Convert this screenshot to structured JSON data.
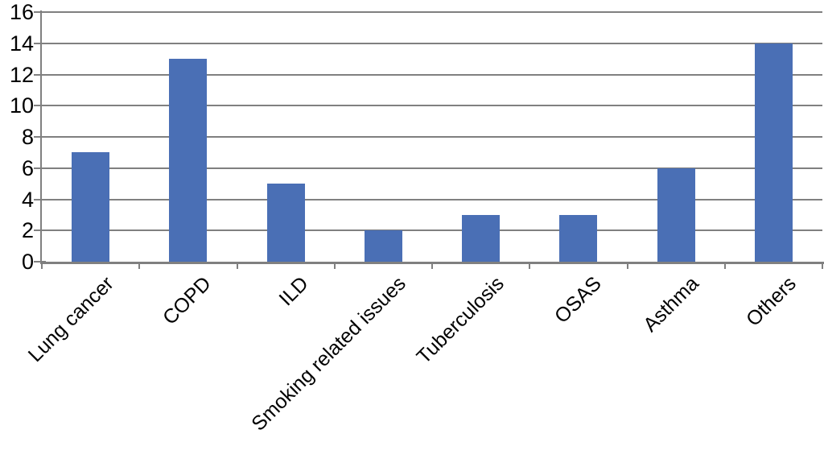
{
  "figure": {
    "background": "#ffffff"
  },
  "chart_data": {
    "type": "bar",
    "categories": [
      "Lung cancer",
      "COPD",
      "ILD",
      "Smoking related issues",
      "Tuberculosis",
      "OSAS",
      "Asthma",
      "Others"
    ],
    "values": [
      7,
      13,
      5,
      2,
      3,
      3,
      6,
      14
    ],
    "title": "",
    "xlabel": "",
    "ylabel": "",
    "ylim": [
      0,
      16
    ],
    "yticks": [
      0,
      2,
      4,
      6,
      8,
      10,
      12,
      14,
      16
    ],
    "grid": "horizontal",
    "legend": "none",
    "x_label_rotation_deg": 45,
    "bar_color": "#4a6fb5",
    "gridline_color": "#808080",
    "axis_color": "#808080",
    "tick_label_color": "#000000"
  }
}
